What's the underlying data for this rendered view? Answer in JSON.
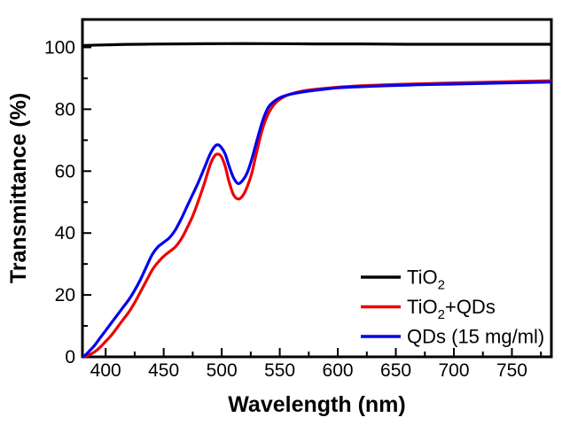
{
  "chart_data": {
    "type": "line",
    "title": "",
    "xlabel": "Wavelength (nm)",
    "ylabel": "Transmittance (%)",
    "xlim": [
      380,
      784
    ],
    "ylim": [
      0,
      109
    ],
    "x_ticks": [
      400,
      450,
      500,
      550,
      600,
      650,
      700,
      750
    ],
    "x_minor_ticks": [
      425,
      475,
      525,
      575,
      625,
      675,
      725,
      775
    ],
    "y_ticks": [
      0,
      20,
      40,
      60,
      80,
      100
    ],
    "y_minor_ticks": [
      10,
      30,
      50,
      70,
      90
    ],
    "grid": false,
    "background_color": "#ffffff",
    "axis_color": "#000000",
    "legend": {
      "position": "lower-right",
      "entries": [
        "TiO2",
        "TiO2+QDs",
        "QDs (15 mg/ml)"
      ]
    },
    "series": [
      {
        "name": "TiO2",
        "label_parts": [
          {
            "t": "TiO"
          },
          {
            "t": "2",
            "sub": true
          }
        ],
        "color": "#000000",
        "x": [
          381,
          400,
          430,
          460,
          500,
          540,
          580,
          620,
          660,
          700,
          740,
          783
        ],
        "y": [
          100.6,
          100.8,
          101.0,
          101.1,
          101.2,
          101.2,
          101.1,
          101.1,
          101.0,
          101.0,
          101.0,
          101.0
        ]
      },
      {
        "name": "TiO2+QDs",
        "label_parts": [
          {
            "t": "TiO"
          },
          {
            "t": "2",
            "sub": true
          },
          {
            "t": "+QDs"
          }
        ],
        "color": "#ee0000",
        "x": [
          381,
          385,
          390,
          395,
          400,
          405,
          410,
          415,
          420,
          425,
          430,
          435,
          440,
          445,
          450,
          455,
          460,
          465,
          470,
          475,
          480,
          485,
          490,
          494,
          497,
          500,
          503,
          506,
          510,
          514,
          518,
          522,
          526,
          530,
          535,
          540,
          545,
          550,
          555,
          560,
          570,
          580,
          600,
          620,
          650,
          680,
          710,
          745,
          783
        ],
        "y": [
          0,
          0.5,
          1.5,
          3,
          5,
          7,
          9.5,
          12,
          14.5,
          17.5,
          21,
          24.5,
          28,
          30.5,
          32.5,
          34,
          35.5,
          38,
          41.5,
          45.5,
          50.5,
          56,
          62,
          65,
          65.5,
          64.5,
          61.5,
          57,
          52.5,
          51,
          52,
          55,
          59.5,
          66,
          73.5,
          78.5,
          81.5,
          83.2,
          84.3,
          85,
          85.9,
          86.4,
          87.1,
          87.6,
          88,
          88.3,
          88.6,
          88.9,
          89.2
        ]
      },
      {
        "name": "QDs (15 mg/ml)",
        "label_parts": [
          {
            "t": "QDs (15 mg/ml)"
          }
        ],
        "color": "#0000ee",
        "x": [
          381,
          385,
          390,
          395,
          400,
          405,
          410,
          415,
          420,
          425,
          430,
          435,
          440,
          445,
          450,
          455,
          460,
          465,
          470,
          475,
          480,
          485,
          490,
          494,
          497,
          500,
          503,
          506,
          510,
          514,
          518,
          522,
          526,
          530,
          535,
          540,
          545,
          550,
          555,
          560,
          570,
          580,
          600,
          620,
          650,
          680,
          710,
          745,
          783
        ],
        "y": [
          0,
          1.5,
          3.5,
          6,
          8.5,
          11,
          13.5,
          16,
          18.5,
          21.5,
          25,
          29,
          33,
          35.5,
          37,
          38.5,
          41,
          44.5,
          48.5,
          52.5,
          56.5,
          61,
          65.5,
          68,
          68.5,
          67.5,
          65.5,
          62,
          58,
          56,
          57,
          59.5,
          64,
          69.5,
          76,
          80.5,
          82.5,
          83.7,
          84.4,
          84.9,
          85.6,
          86.1,
          86.9,
          87.3,
          87.7,
          88,
          88.2,
          88.5,
          88.8
        ]
      }
    ]
  }
}
